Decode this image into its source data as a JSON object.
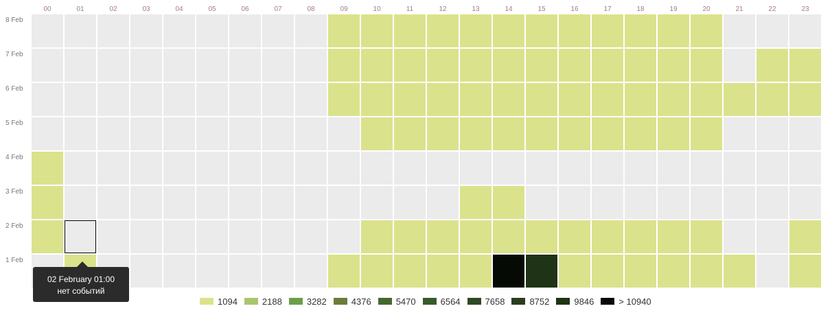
{
  "chart_data": {
    "type": "heatmap",
    "x": [
      "00",
      "01",
      "02",
      "03",
      "04",
      "05",
      "06",
      "07",
      "08",
      "09",
      "10",
      "11",
      "12",
      "13",
      "14",
      "15",
      "16",
      "17",
      "18",
      "19",
      "20",
      "21",
      "22",
      "23"
    ],
    "y": [
      "8 Feb",
      "7 Feb",
      "6 Feb",
      "5 Feb",
      "4 Feb",
      "3 Feb",
      "2 Feb",
      "1 Feb"
    ],
    "empty_color": "#ebebeb",
    "levels": [
      0,
      1,
      9,
      10
    ],
    "level_colors": [
      "#ebebeb",
      "#dbe28c",
      "#1f3416",
      "#050a04"
    ],
    "values": [
      [
        0,
        0,
        0,
        0,
        0,
        0,
        0,
        0,
        0,
        1,
        1,
        1,
        1,
        1,
        1,
        1,
        1,
        1,
        1,
        1,
        1,
        0,
        0,
        0
      ],
      [
        0,
        0,
        0,
        0,
        0,
        0,
        0,
        0,
        0,
        1,
        1,
        1,
        1,
        1,
        1,
        1,
        1,
        1,
        1,
        1,
        1,
        0,
        1,
        1
      ],
      [
        0,
        0,
        0,
        0,
        0,
        0,
        0,
        0,
        0,
        1,
        1,
        1,
        1,
        1,
        1,
        1,
        1,
        1,
        1,
        1,
        1,
        1,
        1,
        1
      ],
      [
        0,
        0,
        0,
        0,
        0,
        0,
        0,
        0,
        0,
        0,
        1,
        1,
        1,
        1,
        1,
        1,
        1,
        1,
        1,
        1,
        1,
        0,
        0,
        0
      ],
      [
        1,
        0,
        0,
        0,
        0,
        0,
        0,
        0,
        0,
        0,
        0,
        0,
        0,
        0,
        0,
        0,
        0,
        0,
        0,
        0,
        0,
        0,
        0,
        0
      ],
      [
        1,
        0,
        0,
        0,
        0,
        0,
        0,
        0,
        0,
        0,
        0,
        0,
        0,
        1,
        1,
        0,
        0,
        0,
        0,
        0,
        0,
        0,
        0,
        0
      ],
      [
        1,
        0,
        0,
        0,
        0,
        0,
        0,
        0,
        0,
        0,
        1,
        1,
        1,
        1,
        1,
        1,
        1,
        1,
        1,
        1,
        1,
        0,
        0,
        1
      ],
      [
        0,
        1,
        0,
        0,
        0,
        0,
        0,
        0,
        0,
        1,
        1,
        1,
        1,
        1,
        10,
        9,
        1,
        1,
        1,
        1,
        1,
        1,
        0,
        1
      ]
    ],
    "selected_cell": {
      "row": "2 Feb",
      "col": "01"
    },
    "legend": [
      {
        "label": "1094",
        "color": "#dbe28c"
      },
      {
        "label": "2188",
        "color": "#a9c66e"
      },
      {
        "label": "3282",
        "color": "#6e9e4a"
      },
      {
        "label": "4376",
        "color": "#6b7c3a"
      },
      {
        "label": "5470",
        "color": "#46682d"
      },
      {
        "label": "6564",
        "color": "#3a5a2b"
      },
      {
        "label": "7658",
        "color": "#2e4a22"
      },
      {
        "label": "8752",
        "color": "#2a3e1e"
      },
      {
        "label": "9846",
        "color": "#1f3416"
      },
      {
        "label": "> 10940",
        "color": "#050a04"
      }
    ],
    "legend_position": "bottom-center",
    "grid": false
  },
  "tooltip": {
    "line1": "02 February 01:00",
    "line2": "нет событий"
  }
}
